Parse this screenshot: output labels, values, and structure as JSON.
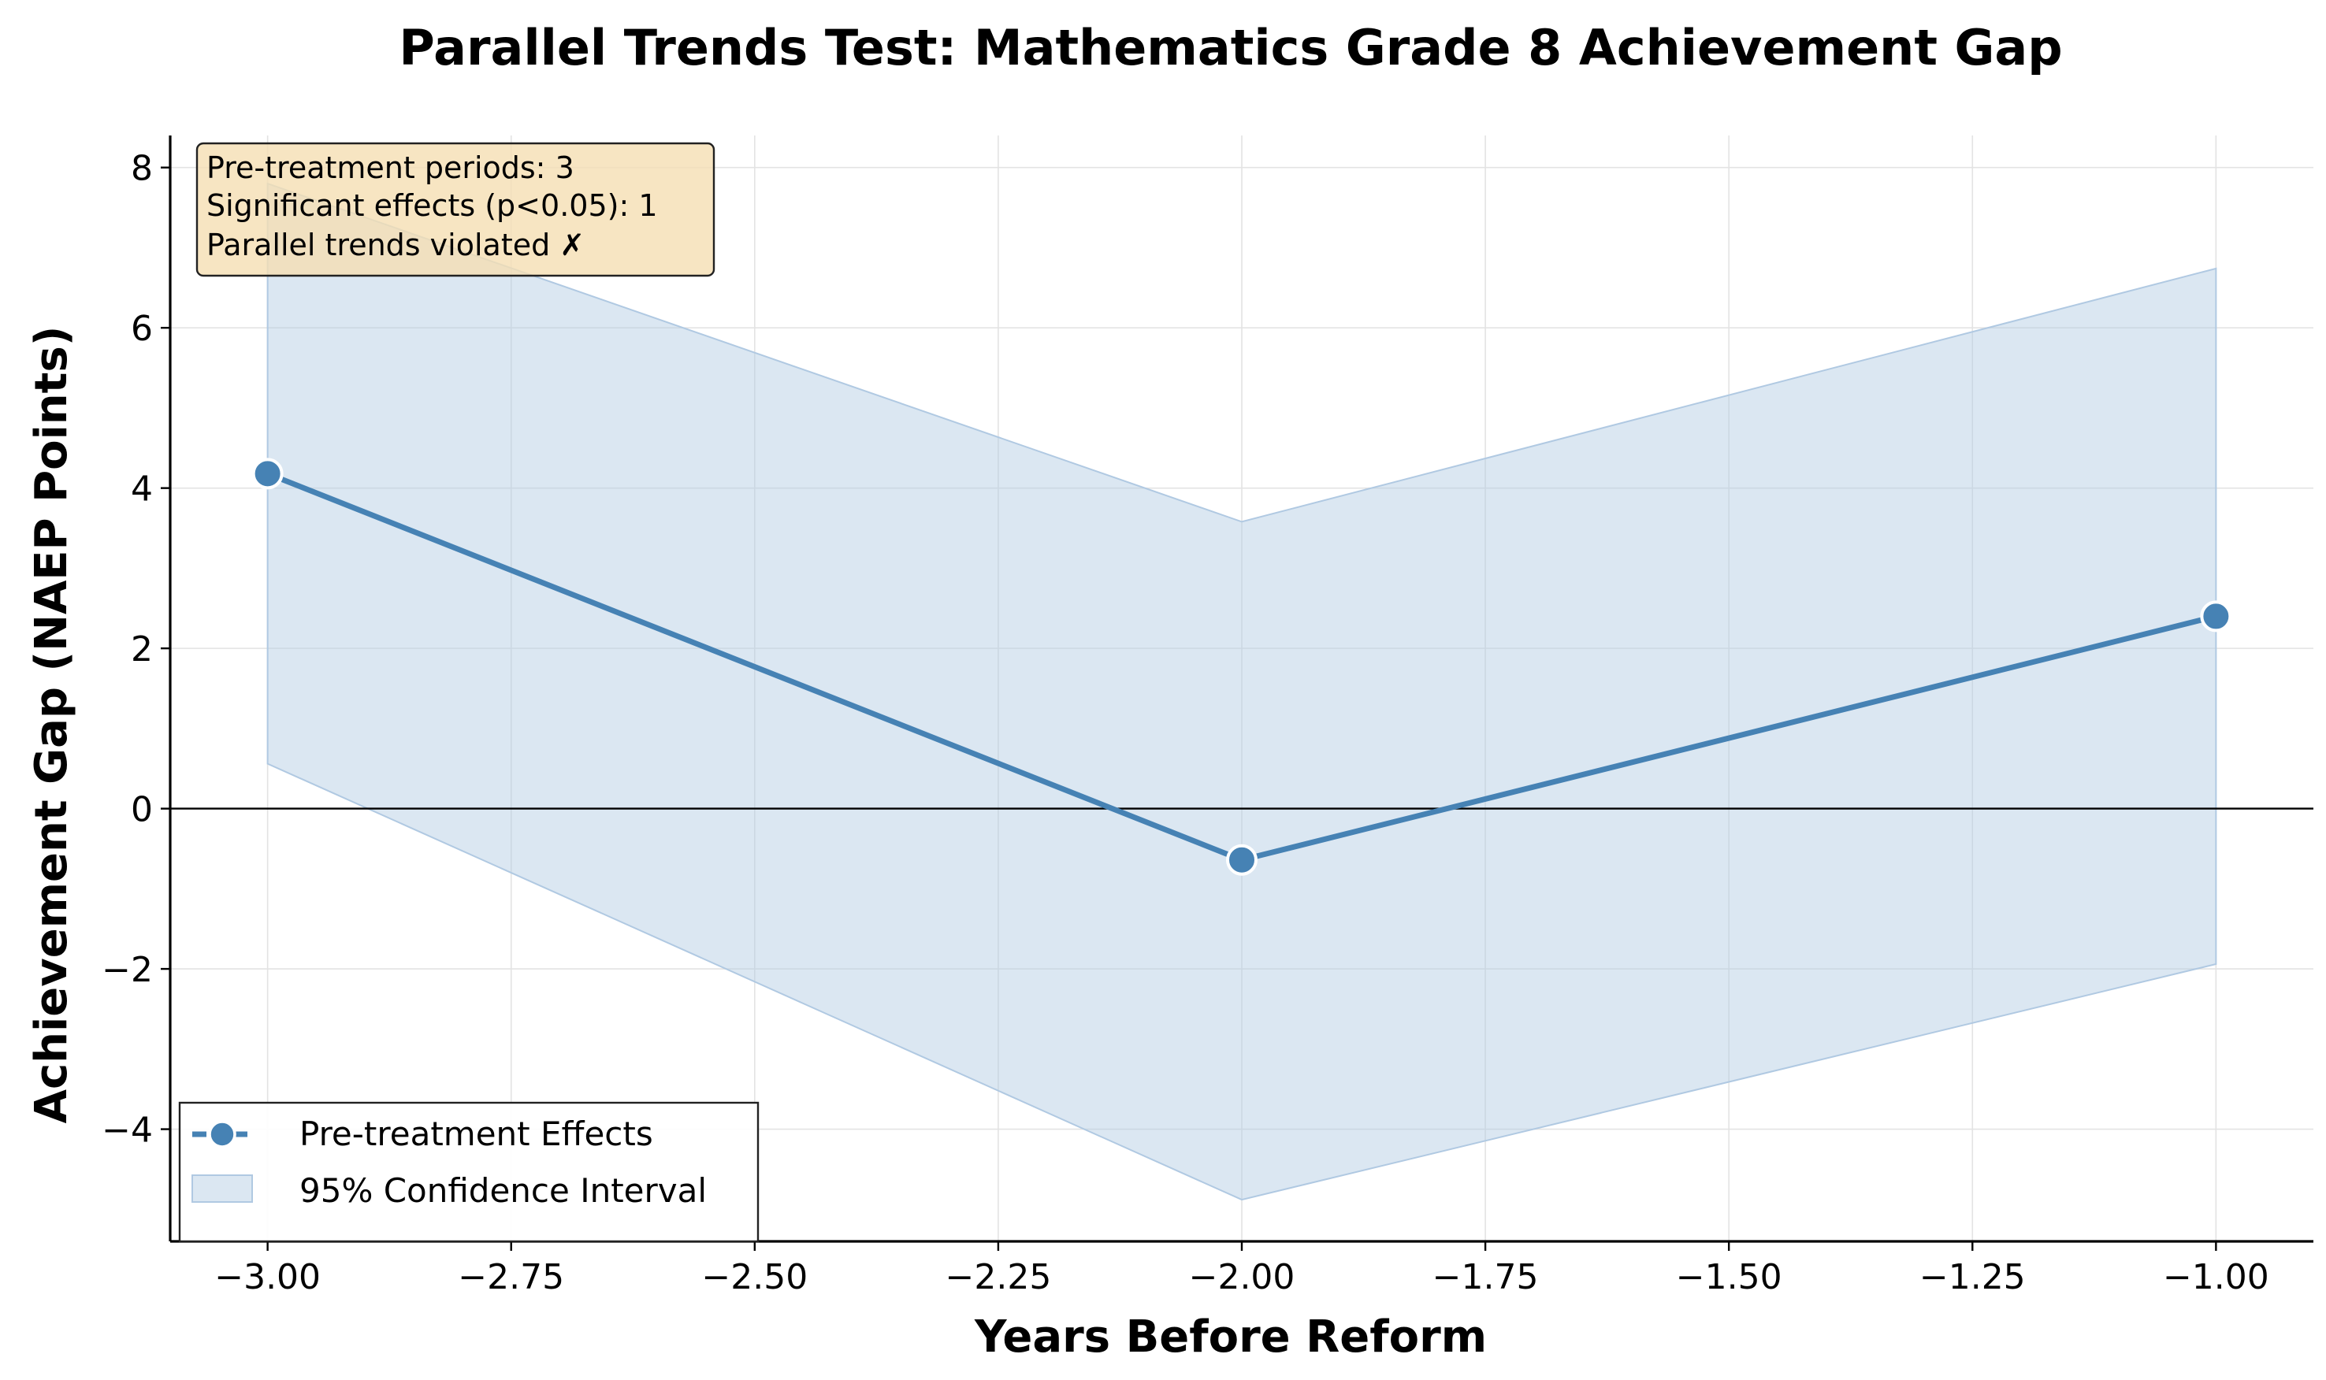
{
  "chart_data": {
    "type": "line",
    "title": "Parallel Trends Test: Mathematics Grade 8 Achievement Gap",
    "xlabel": "Years Before Reform",
    "ylabel": "Achievement Gap (NAEP Points)",
    "xlim": [
      -3.1,
      -0.9
    ],
    "ylim": [
      -5.4,
      8.4
    ],
    "xticks": [
      -3.0,
      -2.75,
      -2.5,
      -2.25,
      -2.0,
      -1.75,
      -1.5,
      -1.25,
      -1.0
    ],
    "xtick_labels": [
      "−3.00",
      "−2.75",
      "−2.50",
      "−2.25",
      "−2.00",
      "−1.75",
      "−1.50",
      "−1.25",
      "−1.00"
    ],
    "yticks": [
      -4,
      -2,
      0,
      2,
      4,
      6,
      8
    ],
    "ytick_labels": [
      "−4",
      "−2",
      "0",
      "2",
      "4",
      "6",
      "8"
    ],
    "grid": true,
    "zero_line": true,
    "series": [
      {
        "name": "Pre-treatment Effects",
        "color": "#4682b4",
        "x": [
          -3,
          -2,
          -1
        ],
        "y": [
          4.18,
          -0.64,
          2.4
        ]
      }
    ],
    "confidence_interval": {
      "name": "95% Confidence Interval",
      "color": "#b0c9e2",
      "x": [
        -3,
        -2,
        -1
      ],
      "lower": [
        0.56,
        -4.88,
        -1.94
      ],
      "upper": [
        7.8,
        3.58,
        6.74
      ]
    },
    "legend_position": "lower-left",
    "annotation": {
      "lines": [
        "Pre-treatment periods: 3",
        "Significant effects (p<0.05): 1",
        "Parallel trends violated ✗"
      ],
      "background": "#f5deb3"
    }
  }
}
